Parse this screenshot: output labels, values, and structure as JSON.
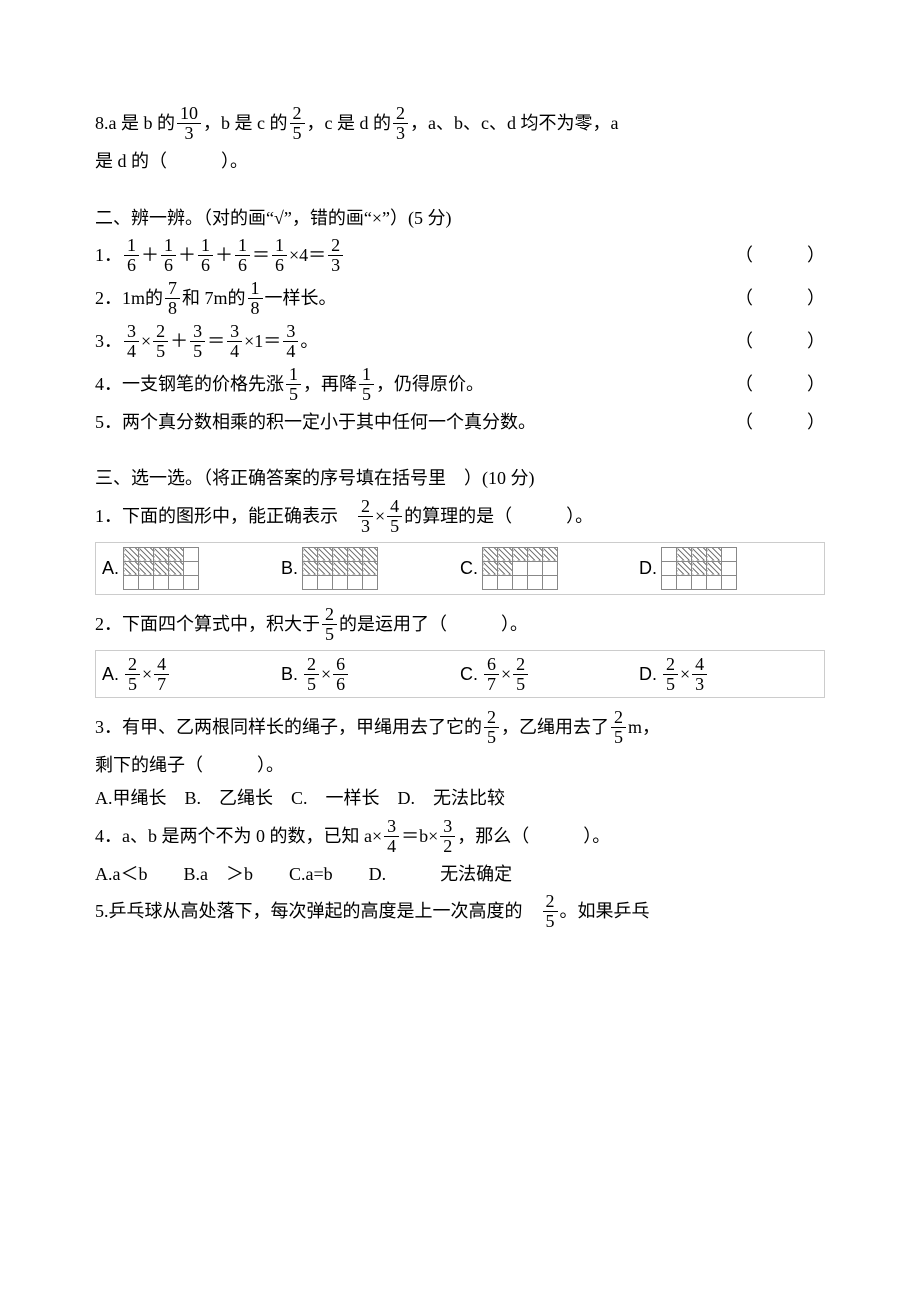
{
  "q8": {
    "pre1": "8.a 是 b 的",
    "f1n": "10",
    "f1d": "3",
    "mid1": "，b 是 c 的",
    "f2n": "2",
    "f2d": "5",
    "mid2": "，c 是 d 的",
    "f3n": "2",
    "f3d": "3",
    "tail1": "，a、b、c、d 均不为零，a",
    "line2": "是 d 的（　　　）。"
  },
  "s2": {
    "title": "二、辨一辨。（对的画“√”，错的画“×”）(5 分)",
    "q1": {
      "pre": "1．",
      "f_n": "1",
      "f_d": "6",
      "plus": "＋",
      "eq": "＝",
      "times": "×4＝",
      "rn": "2",
      "rd": "3",
      "paren": "（　　　）"
    },
    "q2": {
      "pre": "2．1m的 ",
      "f1n": "7",
      "f1d": "8",
      "mid": " 和 7m的 ",
      "f2n": "1",
      "f2d": "8",
      "tail": " 一样长。",
      "paren": "（　　　）"
    },
    "q3": {
      "pre": "3．",
      "f1n": "3",
      "f1d": "4",
      "x": "×",
      "f2n": "2",
      "f2d": "5",
      "plus": "＋",
      "f3n": "3",
      "f3d": "5",
      "eq1": "＝",
      "f4n": "3",
      "f4d": "4",
      "x1": "×1＝",
      "f5n": "3",
      "f5d": "4",
      "dot": "。",
      "paren": "（　　　）"
    },
    "q4": {
      "pre": "4．一支钢笔的价格先涨 ",
      "f1n": "1",
      "f1d": "5",
      "mid": "，再降",
      "f2n": "1",
      "f2d": "5",
      "tail": "，仍得原价。",
      "paren": "（　　　）"
    },
    "q5": {
      "text": "5．两个真分数相乘的积一定小于其中任何一个真分数。",
      "paren": "（　　　）"
    }
  },
  "s3": {
    "title": "三、选一选。（将正确答案的序号填在括号里　）(10 分)",
    "q1": {
      "pre": "1．下面的图形中，能正确表示　",
      "f1n": "2",
      "f1d": "3",
      "x": "×",
      "f2n": "4",
      "f2d": "5",
      "tail": " 的算理的是（　　　）。",
      "A": "A.",
      "B": "B.",
      "C": "C.",
      "D": "D.",
      "gridA": {
        "rows": 3,
        "cols": 5,
        "hatch": [
          [
            0,
            0
          ],
          [
            0,
            1
          ],
          [
            0,
            2
          ],
          [
            0,
            3
          ],
          [
            1,
            0
          ],
          [
            1,
            1
          ],
          [
            1,
            2
          ],
          [
            1,
            3
          ]
        ]
      },
      "gridB": {
        "rows": 3,
        "cols": 5,
        "hatch": [
          [
            0,
            0
          ],
          [
            0,
            1
          ],
          [
            0,
            2
          ],
          [
            0,
            3
          ],
          [
            0,
            4
          ],
          [
            1,
            0
          ],
          [
            1,
            1
          ],
          [
            1,
            2
          ],
          [
            1,
            3
          ],
          [
            1,
            4
          ]
        ]
      },
      "gridC": {
        "rows": 3,
        "cols": 5,
        "hatch": [
          [
            0,
            0
          ],
          [
            0,
            1
          ],
          [
            0,
            2
          ],
          [
            0,
            3
          ],
          [
            0,
            4
          ],
          [
            1,
            0
          ],
          [
            1,
            1
          ]
        ]
      },
      "gridD": {
        "rows": 3,
        "cols": 5,
        "hatch": [
          [
            0,
            1
          ],
          [
            0,
            2
          ],
          [
            0,
            3
          ],
          [
            1,
            1
          ],
          [
            1,
            2
          ],
          [
            1,
            3
          ]
        ]
      }
    },
    "q2": {
      "pre": "2．下面四个算式中，积大于 ",
      "fn": "2",
      "fd": "5",
      "tail": "的是运用了（　　　）。",
      "A": {
        "label": "A.",
        "l_n": "2",
        "l_d": "5",
        "op": "×",
        "r_n": "4",
        "r_d": "7"
      },
      "B": {
        "label": "B.",
        "l_n": "2",
        "l_d": "5",
        "op": "×",
        "r_n": "6",
        "r_d": "6"
      },
      "C": {
        "label": "C.",
        "l_n": "6",
        "l_d": "7",
        "op": "×",
        "r_n": "2",
        "r_d": "5"
      },
      "D": {
        "label": "D.",
        "l_n": "2",
        "l_d": "5",
        "op": "×",
        "r_n": "4",
        "r_d": "3"
      }
    },
    "q3": {
      "pre": "3．有甲、乙两根同样长的绳子，甲绳用去了它的 ",
      "f1n": "2",
      "f1d": "5",
      "mid": "，乙绳用去了 ",
      "f2n": "2",
      "f2d": "5",
      "tail": "m，",
      "line2": "剩下的绳子（　　　）。",
      "opts": "A.甲绳长　B.　乙绳长　C.　一样长　D.　无法比较"
    },
    "q4": {
      "pre": "4．a、b 是两个不为 0 的数，已知 a×",
      "f1n": "3",
      "f1d": "4",
      "mid": "＝b×",
      "f2n": "3",
      "f2d": "2",
      "tail": "，那么（　　　）。",
      "opts": "A.a＜b　　B.a　＞b　　C.a=b　　D.　　　无法确定"
    },
    "q5": {
      "pre": "5.乒乓球从高处落下，每次弹起的高度是上一次高度的　",
      "fn": "2",
      "fd": "5",
      "tail": "。如果乒乓"
    }
  }
}
